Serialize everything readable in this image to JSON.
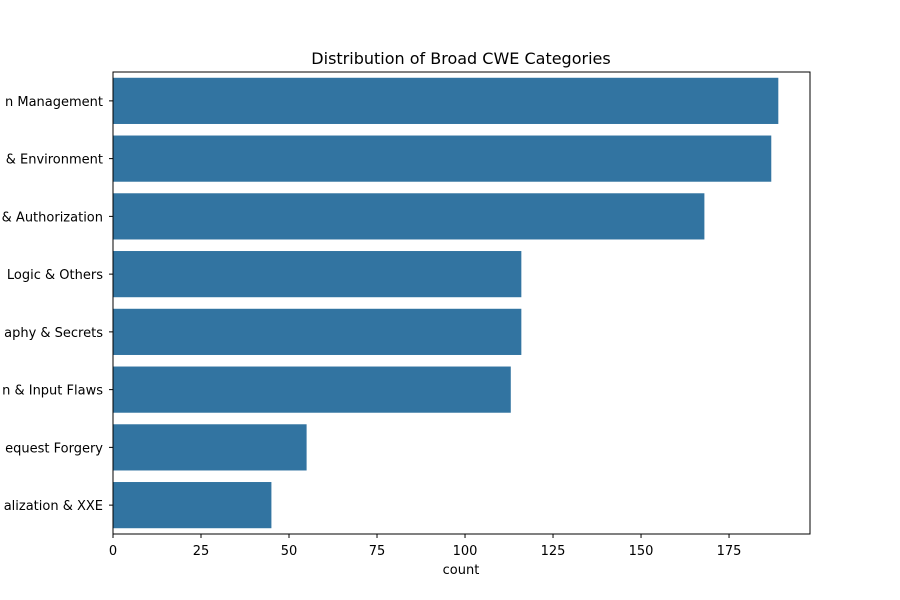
{
  "chart_data": {
    "type": "bar",
    "orientation": "horizontal",
    "title": "Distribution of Broad CWE Categories",
    "xlabel": "count",
    "ylabel": "",
    "categories": [
      "n Management",
      "& Environment",
      "& Authorization",
      "Logic & Others",
      "aphy & Secrets",
      "n & Input Flaws",
      "equest Forgery",
      "alization & XXE"
    ],
    "values": [
      189,
      187,
      168,
      116,
      116,
      113,
      55,
      45
    ],
    "xlim": [
      0,
      198
    ],
    "xticks": [
      0,
      25,
      50,
      75,
      100,
      125,
      150,
      175
    ],
    "grid": false,
    "bar_color": "#3274a1"
  }
}
